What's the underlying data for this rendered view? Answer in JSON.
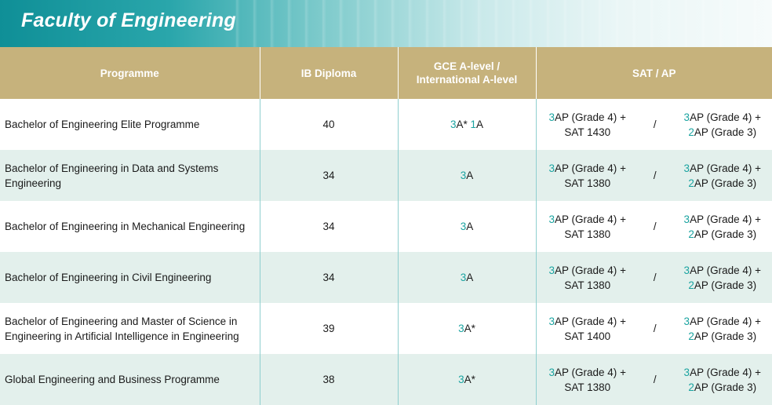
{
  "banner": {
    "title": "Faculty of Engineering"
  },
  "header": {
    "programme": "Programme",
    "ib": "IB Diploma",
    "gce_line1": "GCE A-level /",
    "gce_line2": "International A-level",
    "sat": "SAT / AP"
  },
  "common": {
    "slash": "/",
    "plus": " +",
    "ap_grade4": "AP (Grade 4)",
    "ap_grade3": "AP (Grade 3)",
    "sat_prefix": "SAT "
  },
  "rows": [
    {
      "programme": "Bachelor of Engineering Elite Programme",
      "ib": "40",
      "gce": [
        {
          "num": "3",
          "grade": "A*"
        },
        {
          "num": "1",
          "grade": "A"
        }
      ],
      "ap1": "3",
      "sat": "1430",
      "ap2a": "3",
      "ap2b": "2"
    },
    {
      "programme": "Bachelor of Engineering in Data and Systems Engineering",
      "ib": "34",
      "gce": [
        {
          "num": "3",
          "grade": "A"
        }
      ],
      "ap1": "3",
      "sat": "1380",
      "ap2a": "3",
      "ap2b": "2"
    },
    {
      "programme": "Bachelor of Engineering in Mechanical Engineering",
      "ib": "34",
      "gce": [
        {
          "num": "3",
          "grade": "A"
        }
      ],
      "ap1": "3",
      "sat": "1380",
      "ap2a": "3",
      "ap2b": "2"
    },
    {
      "programme": "Bachelor of Engineering in Civil Engineering",
      "ib": "34",
      "gce": [
        {
          "num": "3",
          "grade": "A"
        }
      ],
      "ap1": "3",
      "sat": "1380",
      "ap2a": "3",
      "ap2b": "2"
    },
    {
      "programme": "Bachelor of Engineering and Master of Science in Engineering in Artificial Intelligence in Engineering",
      "ib": "39",
      "gce": [
        {
          "num": "3",
          "grade": "A*"
        }
      ],
      "ap1": "3",
      "sat": "1400",
      "ap2a": "3",
      "ap2b": "2"
    },
    {
      "programme": "Global Engineering and Business Programme",
      "ib": "38",
      "gce": [
        {
          "num": "3",
          "grade": "A*"
        }
      ],
      "ap1": "3",
      "sat": "1380",
      "ap2a": "3",
      "ap2b": "2"
    }
  ],
  "colors": {
    "teal_number": "#1aa3a0",
    "header_bg": "#c6b27c",
    "banner_teal": "#0f8f97",
    "row_alt_bg": "#e3f0ec"
  }
}
